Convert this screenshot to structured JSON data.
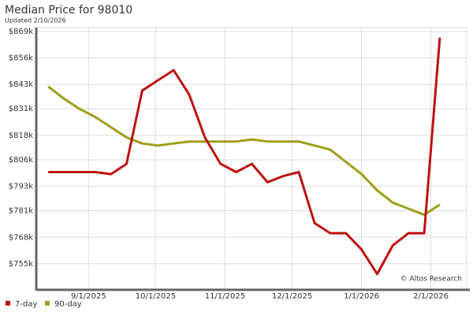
{
  "chart_data": {
    "type": "line",
    "title": "Median Price for 98010",
    "subtitle": "Updated 2/10/2026",
    "watermark": "© Altos Research",
    "x": [
      "2025-08-14",
      "2025-08-21",
      "2025-08-28",
      "2025-09-04",
      "2025-09-11",
      "2025-09-18",
      "2025-09-25",
      "2025-10-02",
      "2025-10-09",
      "2025-10-16",
      "2025-10-23",
      "2025-10-30",
      "2025-11-06",
      "2025-11-13",
      "2025-11-20",
      "2025-11-27",
      "2025-12-04",
      "2025-12-11",
      "2025-12-18",
      "2025-12-25",
      "2026-01-01",
      "2026-01-08",
      "2026-01-15",
      "2026-01-22",
      "2026-01-29",
      "2026-02-05"
    ],
    "series": [
      {
        "name": "7-day",
        "color": "#bb1111",
        "values": [
          800000,
          800000,
          800000,
          800000,
          799000,
          804000,
          840000,
          845000,
          850000,
          838000,
          817000,
          804000,
          800000,
          804000,
          795000,
          798000,
          800000,
          775000,
          770000,
          770000,
          762000,
          750000,
          764000,
          770000,
          770000,
          866000
        ]
      },
      {
        "name": "90-day",
        "color": "#9e9e17",
        "values": [
          842000,
          836000,
          831000,
          827000,
          822000,
          817000,
          814000,
          813000,
          814000,
          815000,
          815000,
          815000,
          815000,
          816000,
          815000,
          815000,
          815000,
          813000,
          811000,
          805000,
          799000,
          791000,
          785000,
          782000,
          779000,
          784000
        ]
      }
    ],
    "xlim": [
      "2025-08-09",
      "2026-02-17"
    ],
    "xticks": [
      {
        "value": "2025-09-01",
        "label": "9/1/2025"
      },
      {
        "value": "2025-10-01",
        "label": "10/1/2025"
      },
      {
        "value": "2025-11-01",
        "label": "11/1/2025"
      },
      {
        "value": "2025-12-01",
        "label": "12/1/2025"
      },
      {
        "value": "2026-01-01",
        "label": "1/1/2026"
      },
      {
        "value": "2026-02-01",
        "label": "2/1/2026"
      }
    ],
    "ylim": [
      742600,
      870900
    ],
    "yticks": [
      {
        "value": 755000,
        "label": "$755k"
      },
      {
        "value": 768000,
        "label": "$768k"
      },
      {
        "value": 781000,
        "label": "$781k"
      },
      {
        "value": 793000,
        "label": "$793k"
      },
      {
        "value": 806000,
        "label": "$806k"
      },
      {
        "value": 818000,
        "label": "$818k"
      },
      {
        "value": 831000,
        "label": "$831k"
      },
      {
        "value": 843000,
        "label": "$843k"
      },
      {
        "value": 856000,
        "label": "$856k"
      },
      {
        "value": 869000,
        "label": "$869k"
      }
    ],
    "grid": true
  }
}
